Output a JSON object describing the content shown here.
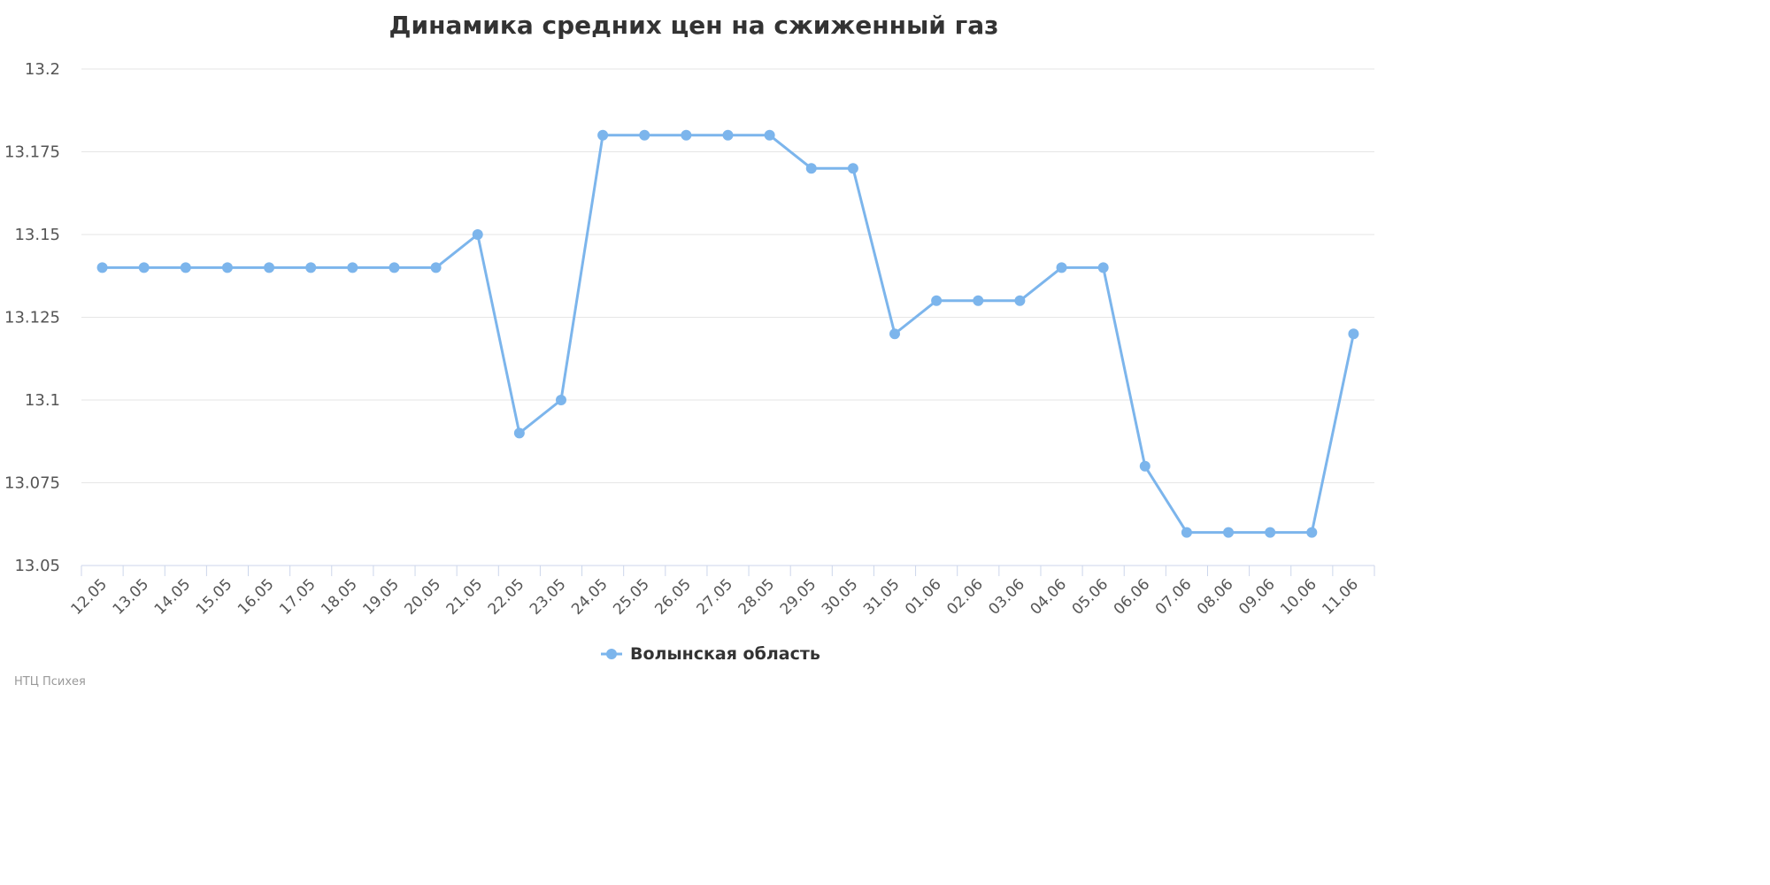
{
  "chart_data": {
    "type": "line",
    "title": "Динамика средних цен на сжиженный газ",
    "categories": [
      "12.05",
      "13.05",
      "14.05",
      "15.05",
      "16.05",
      "17.05",
      "18.05",
      "19.05",
      "20.05",
      "21.05",
      "22.05",
      "23.05",
      "24.05",
      "25.05",
      "26.05",
      "27.05",
      "28.05",
      "29.05",
      "30.05",
      "31.05",
      "01.06",
      "02.06",
      "03.06",
      "04.06",
      "05.06",
      "06.06",
      "07.06",
      "08.06",
      "09.06",
      "10.06",
      "11.06"
    ],
    "series": [
      {
        "name": "Волынская область",
        "color": "#7cb5ec",
        "values": [
          13.14,
          13.14,
          13.14,
          13.14,
          13.14,
          13.14,
          13.14,
          13.14,
          13.14,
          13.15,
          13.09,
          13.1,
          13.18,
          13.18,
          13.18,
          13.18,
          13.18,
          13.17,
          13.17,
          13.12,
          13.13,
          13.13,
          13.13,
          13.14,
          13.14,
          13.08,
          13.06,
          13.06,
          13.06,
          13.06,
          13.12
        ]
      }
    ],
    "xlabel": "",
    "ylabel": "",
    "ylim": [
      13.05,
      13.2
    ],
    "yticks": [
      "13.05",
      "13.075",
      "13.1",
      "13.125",
      "13.15",
      "13.175",
      "13.2"
    ],
    "grid": true,
    "legend": "bottom-center"
  },
  "credits": "НТЦ Психея"
}
